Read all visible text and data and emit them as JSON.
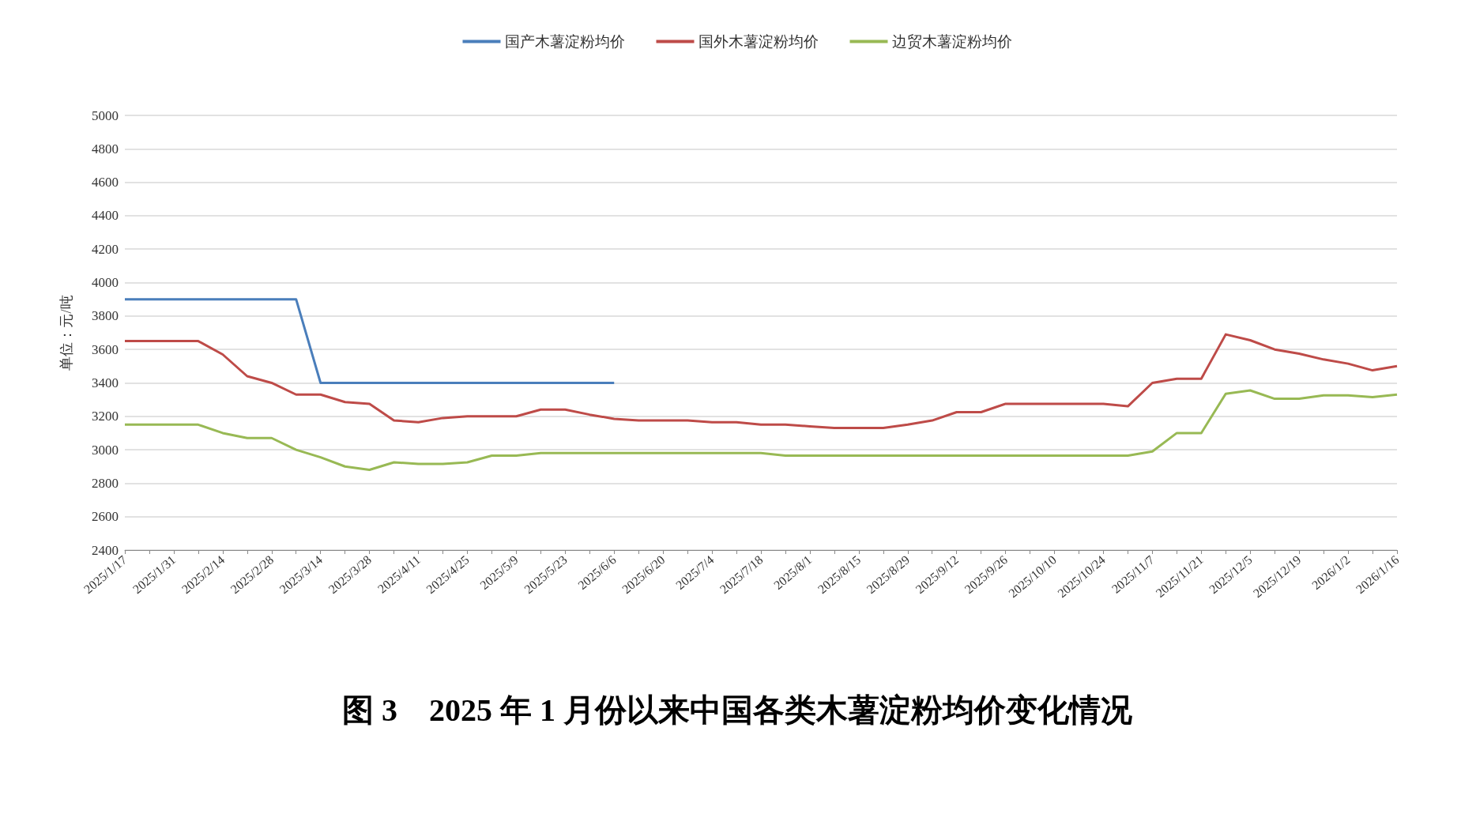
{
  "chart_data": {
    "type": "line",
    "title": "图 3　2025 年 1 月份以来中国各类木薯淀粉均价变化情况",
    "ylabel": "单位：元/吨",
    "categories": [
      "2025/1/17",
      null,
      "2025/1/31",
      null,
      "2025/2/14",
      null,
      "2025/2/28",
      null,
      "2025/3/14",
      null,
      "2025/3/28",
      null,
      "2025/4/11",
      null,
      "2025/4/25",
      null,
      "2025/5/9",
      null,
      "2025/5/23",
      null,
      "2025/6/6",
      null,
      "2025/6/20",
      null,
      "2025/7/4",
      null,
      "2025/7/18",
      null,
      "2025/8/1",
      null,
      "2025/8/15",
      null,
      "2025/8/29",
      null,
      "2025/9/12",
      null,
      "2025/9/26",
      null,
      "2025/10/10",
      null,
      "2025/10/24",
      null,
      "2025/11/7",
      null,
      "2025/11/21",
      null,
      "2025/12/5",
      null,
      "2025/12/19",
      null,
      "2026/1/2",
      null,
      "2026/1/16"
    ],
    "series": [
      {
        "name": "国产木薯淀粉均价",
        "color": "#4a7ebb",
        "values": [
          3900,
          3900,
          3900,
          3900,
          3900,
          3900,
          3900,
          3900,
          3400,
          3400,
          3400,
          3400,
          3400,
          3400,
          3400,
          3400,
          3400,
          3400,
          3400,
          3400,
          3400,
          null,
          null,
          null,
          null,
          null,
          null,
          null,
          null,
          null,
          null,
          null,
          null,
          null,
          null,
          null,
          null,
          null,
          null,
          null,
          null,
          null,
          null,
          null,
          null,
          null,
          null,
          null,
          null,
          null,
          null,
          null,
          null
        ]
      },
      {
        "name": "国外木薯淀粉均价",
        "color": "#be4b48",
        "values": [
          3650,
          3650,
          3650,
          3650,
          3570,
          3440,
          3400,
          3330,
          3330,
          3285,
          3275,
          3175,
          3165,
          3190,
          3200,
          3200,
          3200,
          3240,
          3240,
          3210,
          3185,
          3175,
          3175,
          3175,
          3165,
          3165,
          3150,
          3150,
          3140,
          3130,
          3130,
          3130,
          3150,
          3175,
          3225,
          3225,
          3275,
          3275,
          3275,
          3275,
          3275,
          3260,
          3400,
          3425,
          3425,
          3690,
          3655,
          3600,
          3575,
          3540,
          3515,
          3475,
          3500
        ]
      },
      {
        "name": "边贸木薯淀粉均价",
        "color": "#98b954",
        "values": [
          3150,
          3150,
          3150,
          3150,
          3100,
          3070,
          3070,
          3000,
          2955,
          2900,
          2880,
          2925,
          2915,
          2915,
          2925,
          2965,
          2965,
          2980,
          2980,
          2980,
          2980,
          2980,
          2980,
          2980,
          2980,
          2980,
          2980,
          2965,
          2965,
          2965,
          2965,
          2965,
          2965,
          2965,
          2965,
          2965,
          2965,
          2965,
          2965,
          2965,
          2965,
          2965,
          2990,
          3100,
          3100,
          3335,
          3355,
          3305,
          3305,
          3325,
          3325,
          3315,
          3330
        ]
      }
    ],
    "ylim": [
      2400,
      5000
    ],
    "yticks": [
      2400,
      2600,
      2800,
      3000,
      3200,
      3400,
      3600,
      3800,
      4000,
      4200,
      4400,
      4600,
      4800,
      5000
    ],
    "grid": "y",
    "legend": "top",
    "marker": "none",
    "line_style": "solid"
  }
}
